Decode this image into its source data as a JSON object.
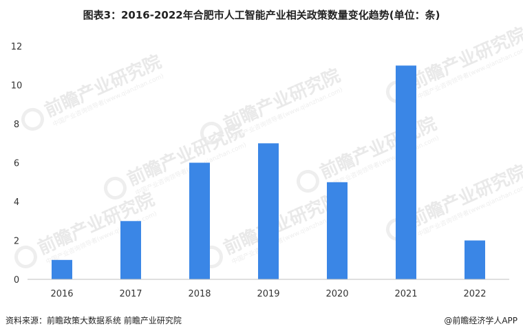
{
  "chart_data": {
    "type": "bar",
    "title": "图表3：2016-2022年合肥市人工智能产业相关政策数量变化趋势(单位：条)",
    "categories": [
      "2016",
      "2017",
      "2018",
      "2019",
      "2020",
      "2021",
      "2022"
    ],
    "values": [
      1,
      3,
      6,
      7,
      5,
      11,
      2
    ],
    "ylim": [
      0,
      12
    ],
    "yticks": [
      0,
      2,
      4,
      6,
      8,
      10,
      12
    ],
    "xlabel": "",
    "ylabel": "",
    "grid": false,
    "legend": "none",
    "bar_color": "#3a86e6"
  },
  "footer": {
    "source": "资料来源：前瞻政策大数据系统 前瞻产业研究院",
    "brand": "@前瞻经济学人APP"
  },
  "watermark": {
    "text": "前瞻产业研究院",
    "sub": "中国产业咨询领导者(www.qianzhan.com)"
  }
}
